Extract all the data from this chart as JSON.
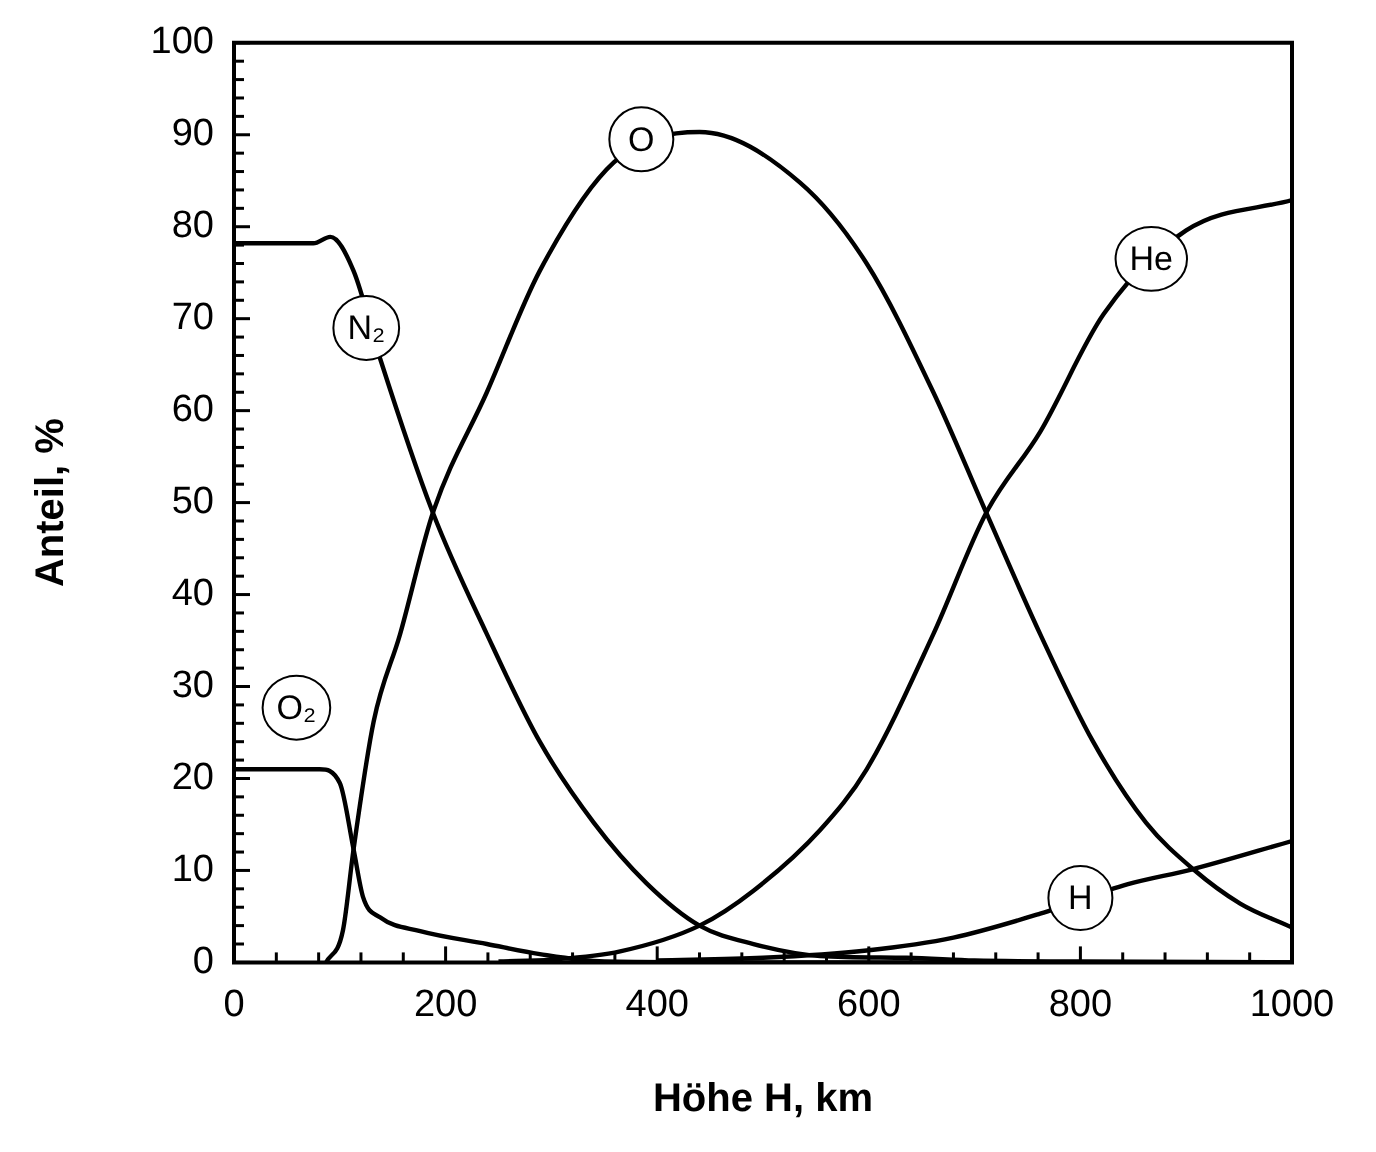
{
  "chart_data": {
    "type": "line",
    "xlabel": "Höhe H, km",
    "ylabel": "Anteil, %",
    "xlim": [
      0,
      1000
    ],
    "ylim": [
      0,
      100
    ],
    "xticks": [
      0,
      {
        "value": 40,
        "label": null
      },
      {
        "value": 80,
        "label": null
      },
      {
        "value": 120,
        "label": null
      },
      {
        "value": 160,
        "label": null
      },
      200,
      {
        "value": 240,
        "label": null
      },
      {
        "value": 280,
        "label": null
      },
      {
        "value": 320,
        "label": null
      },
      {
        "value": 360,
        "label": null
      },
      400,
      {
        "value": 440,
        "label": null
      },
      {
        "value": 480,
        "label": null
      },
      {
        "value": 520,
        "label": null
      },
      {
        "value": 560,
        "label": null
      },
      600,
      {
        "value": 640,
        "label": null
      },
      {
        "value": 680,
        "label": null
      },
      {
        "value": 720,
        "label": null
      },
      {
        "value": 760,
        "label": null
      },
      800,
      {
        "value": 840,
        "label": null
      },
      {
        "value": 880,
        "label": null
      },
      {
        "value": 920,
        "label": null
      },
      {
        "value": 960,
        "label": null
      },
      1000
    ],
    "yticks": [
      0,
      {
        "value": 2,
        "label": null
      },
      {
        "value": 4,
        "label": null
      },
      {
        "value": 6,
        "label": null
      },
      {
        "value": 8,
        "label": null
      },
      10,
      {
        "value": 12,
        "label": null
      },
      {
        "value": 14,
        "label": null
      },
      {
        "value": 16,
        "label": null
      },
      {
        "value": 18,
        "label": null
      },
      20,
      {
        "value": 22,
        "label": null
      },
      {
        "value": 24,
        "label": null
      },
      {
        "value": 26,
        "label": null
      },
      {
        "value": 28,
        "label": null
      },
      30,
      {
        "value": 32,
        "label": null
      },
      {
        "value": 34,
        "label": null
      },
      {
        "value": 36,
        "label": null
      },
      {
        "value": 38,
        "label": null
      },
      40,
      {
        "value": 42,
        "label": null
      },
      {
        "value": 44,
        "label": null
      },
      {
        "value": 46,
        "label": null
      },
      {
        "value": 48,
        "label": null
      },
      50,
      {
        "value": 52,
        "label": null
      },
      {
        "value": 54,
        "label": null
      },
      {
        "value": 56,
        "label": null
      },
      {
        "value": 58,
        "label": null
      },
      60,
      {
        "value": 62,
        "label": null
      },
      {
        "value": 64,
        "label": null
      },
      {
        "value": 66,
        "label": null
      },
      {
        "value": 68,
        "label": null
      },
      70,
      {
        "value": 72,
        "label": null
      },
      {
        "value": 74,
        "label": null
      },
      {
        "value": 76,
        "label": null
      },
      {
        "value": 78,
        "label": null
      },
      80,
      {
        "value": 82,
        "label": null
      },
      {
        "value": 84,
        "label": null
      },
      {
        "value": 86,
        "label": null
      },
      {
        "value": 88,
        "label": null
      },
      90,
      {
        "value": 92,
        "label": null
      },
      {
        "value": 94,
        "label": null
      },
      {
        "value": 96,
        "label": null
      },
      {
        "value": 98,
        "label": null
      },
      100
    ],
    "grid": false,
    "legend": false,
    "marker": "none",
    "line_style": "solid",
    "series": [
      {
        "color": "#000000",
        "x": [
          0,
          40,
          75,
          91,
          113,
          138,
          188,
          239,
          289,
          340,
          390,
          440,
          491,
          554,
          636,
          700,
          800,
          1000
        ],
        "values": [
          78.2,
          78.2,
          78.2,
          78.9,
          75.2,
          65.7,
          48.9,
          35.7,
          24,
          15.2,
          8.6,
          4,
          2,
          0.7,
          0.5,
          0.2,
          0.1,
          0
        ]
      },
      {
        "color": "#000000",
        "x": [
          0,
          40,
          81,
          100,
          113,
          122,
          138,
          176,
          239,
          289,
          350,
          500,
          1000
        ],
        "values": [
          21,
          21,
          21,
          19.5,
          12.3,
          7.1,
          4.9,
          3.4,
          2,
          0.9,
          0.1,
          0,
          0
        ]
      },
      {
        "color": "#000000",
        "x": [
          87,
          103,
          113,
          132,
          157,
          188,
          239,
          289,
          359,
          440,
          535,
          598,
          661,
          711,
          762,
          812,
          862,
          907,
          951,
          1000
        ],
        "values": [
          0,
          3.5,
          12.3,
          26.2,
          35.7,
          48.9,
          62,
          75.2,
          87,
          90.3,
          84.8,
          76,
          62,
          48.9,
          35.7,
          24,
          15.2,
          10.1,
          6.4,
          3.8
        ]
      },
      {
        "color": "#000000",
        "x": [
          250,
          300,
          365,
          440,
          491,
          554,
          598,
          661,
          711,
          762,
          822,
          900,
          1000
        ],
        "values": [
          0.1,
          0.3,
          1.2,
          4,
          7.8,
          14.4,
          21,
          35.7,
          48.9,
          57.7,
          70.5,
          79.6,
          82.9
        ]
      },
      {
        "color": "#000000",
        "x": [
          400,
          500,
          598,
          680,
          762,
          845,
          905,
          1000
        ],
        "values": [
          0.2,
          0.5,
          1.3,
          2.7,
          5.3,
          8.5,
          10.1,
          13.2
        ]
      }
    ],
    "annotations": [
      {
        "text": "N₂",
        "x": 125,
        "y": 69
      },
      {
        "text": "O₂",
        "x": 59,
        "y": 27.7
      },
      {
        "text": "O",
        "x": 385,
        "y": 89.5
      },
      {
        "text": "He",
        "x": 867,
        "y": 76.5
      },
      {
        "text": "H",
        "x": 800,
        "y": 7
      }
    ]
  }
}
